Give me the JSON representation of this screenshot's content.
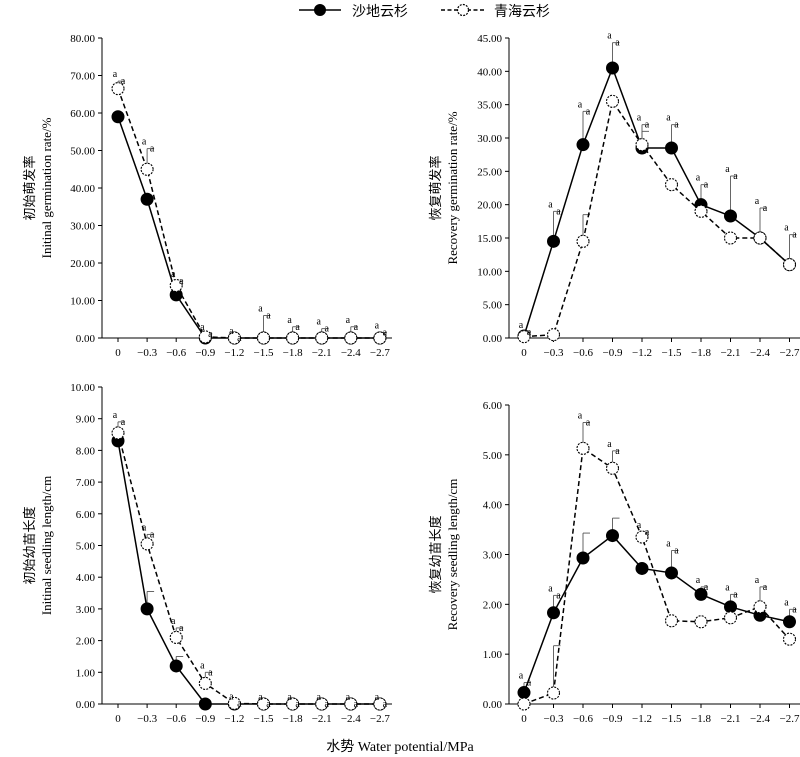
{
  "legend": [
    {
      "name": "沙地云杉",
      "style": "solid-filled"
    },
    {
      "name": "青海云杉",
      "style": "dashed-open"
    }
  ],
  "x_axis_label": "水势 Water potential/MPa",
  "chart_data": [
    {
      "type": "line",
      "ylabel_cn": "初始萌发率",
      "ylabel_en": "Initinal germination rate/%",
      "ylim": [
        0,
        80
      ],
      "ytick_step": 10,
      "ytick_decimals": 2,
      "categories": [
        "0",
        "−0.3",
        "−0.6",
        "−0.9",
        "−1.2",
        "−1.5",
        "−1.8",
        "−2.1",
        "−2.4",
        "−2.7"
      ],
      "series": [
        {
          "name": "沙地云杉",
          "values": [
            59.0,
            37.0,
            11.5,
            0,
            0,
            0,
            0,
            0,
            0,
            0
          ],
          "errors": [
            0,
            0,
            0,
            0,
            0,
            0,
            0,
            0,
            0,
            0
          ]
        },
        {
          "name": "青海云杉",
          "values": [
            66.5,
            45.0,
            14.0,
            0.3,
            0,
            0,
            0,
            0,
            0,
            0
          ],
          "errors": [
            2.0,
            5.5,
            1.2,
            0.8,
            0,
            6.0,
            3.0,
            2.5,
            3.0,
            1.5
          ]
        }
      ],
      "sig_labels": [
        "a",
        "a",
        "a",
        "a",
        "a",
        "a",
        "a",
        "a",
        "a",
        "a"
      ]
    },
    {
      "type": "line",
      "ylabel_cn": "恢复萌发率",
      "ylabel_en": "Recovery germination rate/%",
      "ylim": [
        0,
        45
      ],
      "ytick_step": 5,
      "ytick_decimals": 2,
      "categories": [
        "0",
        "−0.3",
        "−0.6",
        "−0.9",
        "−1.2",
        "−1.5",
        "−1.8",
        "−2.1",
        "−2.4",
        "−2.7"
      ],
      "series": [
        {
          "name": "沙地云杉",
          "values": [
            0.3,
            14.5,
            29.0,
            40.5,
            28.5,
            28.5,
            20.0,
            18.3,
            15.0,
            11.0
          ],
          "errors": [
            0.6,
            4.5,
            5.0,
            3.8,
            2.5,
            3.5,
            3.0,
            6.0,
            4.5,
            4.5
          ]
        },
        {
          "name": "青海云杉",
          "values": [
            0.2,
            0.5,
            14.5,
            35.5,
            29.0,
            23.0,
            19.0,
            15.0,
            15.0,
            11.0
          ],
          "errors": [
            0,
            0,
            4.0,
            0,
            3.0,
            0,
            0,
            0,
            0,
            0
          ]
        }
      ],
      "sig_labels": [
        "a",
        "a",
        "a",
        "a",
        "a",
        "a",
        "a",
        "a",
        "a",
        "a"
      ]
    },
    {
      "type": "line",
      "ylabel_cn": "初始幼苗长度",
      "ylabel_en": "Initinal seedling length/cm",
      "ylim": [
        0,
        10
      ],
      "ytick_step": 1,
      "ytick_decimals": 2,
      "categories": [
        "0",
        "−0.3",
        "−0.6",
        "−0.9",
        "−1.2",
        "−1.5",
        "−1.8",
        "−2.1",
        "−2.4",
        "−2.7"
      ],
      "series": [
        {
          "name": "沙地云杉",
          "values": [
            8.3,
            3.0,
            1.2,
            0,
            0,
            0,
            0,
            0,
            0,
            0
          ],
          "errors": [
            0,
            0.55,
            0.3,
            0,
            0,
            0,
            0,
            0,
            0,
            0
          ]
        },
        {
          "name": "青海云杉",
          "values": [
            8.55,
            5.05,
            2.1,
            0.65,
            0.02,
            0,
            0,
            0,
            0,
            0
          ],
          "errors": [
            0.35,
            0.3,
            0.3,
            0.35,
            0,
            0,
            0,
            0,
            0,
            0
          ]
        }
      ],
      "sig_labels": [
        "a",
        "a",
        "a",
        "a",
        "a",
        "a",
        "a",
        "a",
        "a",
        "a"
      ]
    },
    {
      "type": "line",
      "ylabel_cn": "恢复幼苗长度",
      "ylabel_en": "Recovery seedling length/cm",
      "ylim": [
        0,
        6
      ],
      "ytick_step": 1,
      "ytick_decimals": 2,
      "categories": [
        "0",
        "−0.3",
        "−0.6",
        "−0.9",
        "−1.2",
        "−1.5",
        "−1.8",
        "−2.1",
        "−2.4",
        "−2.7"
      ],
      "series": [
        {
          "name": "沙地云杉",
          "values": [
            0.23,
            1.83,
            2.93,
            3.38,
            2.72,
            2.63,
            2.2,
            1.95,
            1.78,
            1.65
          ],
          "errors": [
            0.2,
            0.35,
            0.5,
            0.35,
            0,
            0.45,
            0.15,
            0.25,
            0.2,
            0.25
          ]
        },
        {
          "name": "青海云杉",
          "values": [
            0,
            0.22,
            5.13,
            4.73,
            3.35,
            1.67,
            1.65,
            1.73,
            1.95,
            1.3
          ],
          "errors": [
            0,
            0.95,
            0.52,
            0.35,
            0.1,
            0,
            0,
            0,
            0.4,
            0
          ]
        }
      ],
      "sig_labels": [
        "a",
        "a",
        "a",
        "a",
        "a",
        "a",
        "a",
        "a",
        "a",
        "a"
      ]
    }
  ]
}
